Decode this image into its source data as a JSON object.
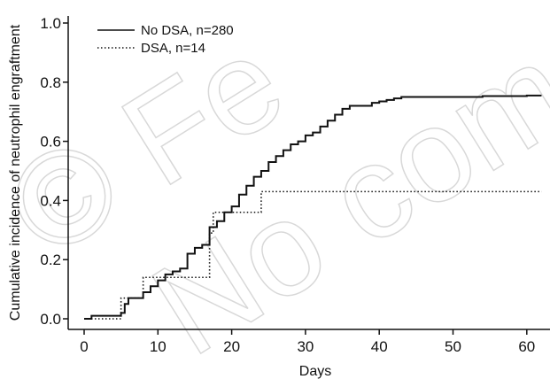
{
  "chart_data": {
    "type": "line",
    "step": true,
    "xlabel": "Days",
    "ylabel": "Cumulative incidence of neutrophil engraftment",
    "xlim": [
      0,
      62
    ],
    "ylim": [
      0,
      1.0
    ],
    "xticks": [
      "0",
      "10",
      "20",
      "30",
      "40",
      "50",
      "60"
    ],
    "yticks": [
      "0.0",
      "0.2",
      "0.4",
      "0.6",
      "0.8",
      "1.0"
    ],
    "legend_position": "top-left",
    "grid": false,
    "series": [
      {
        "name": "No DSA, n=280",
        "style": "solid",
        "points": [
          [
            0,
            0.0
          ],
          [
            1,
            0.01
          ],
          [
            5,
            0.02
          ],
          [
            5.5,
            0.05
          ],
          [
            6,
            0.07
          ],
          [
            7,
            0.07
          ],
          [
            8,
            0.09
          ],
          [
            9,
            0.11
          ],
          [
            10,
            0.13
          ],
          [
            11,
            0.15
          ],
          [
            12,
            0.16
          ],
          [
            13,
            0.17
          ],
          [
            14,
            0.22
          ],
          [
            15,
            0.24
          ],
          [
            16,
            0.25
          ],
          [
            17,
            0.31
          ],
          [
            18,
            0.33
          ],
          [
            19,
            0.36
          ],
          [
            20,
            0.38
          ],
          [
            21,
            0.42
          ],
          [
            22,
            0.45
          ],
          [
            23,
            0.48
          ],
          [
            24,
            0.5
          ],
          [
            25,
            0.53
          ],
          [
            26,
            0.55
          ],
          [
            27,
            0.57
          ],
          [
            28,
            0.59
          ],
          [
            29,
            0.6
          ],
          [
            30,
            0.62
          ],
          [
            31,
            0.63
          ],
          [
            32,
            0.65
          ],
          [
            33,
            0.67
          ],
          [
            34,
            0.69
          ],
          [
            35,
            0.71
          ],
          [
            36,
            0.72
          ],
          [
            38,
            0.72
          ],
          [
            39,
            0.73
          ],
          [
            40,
            0.735
          ],
          [
            41,
            0.74
          ],
          [
            42,
            0.745
          ],
          [
            43,
            0.75
          ],
          [
            50,
            0.75
          ],
          [
            54,
            0.753
          ],
          [
            60,
            0.755
          ],
          [
            62,
            0.755
          ]
        ]
      },
      {
        "name": "DSA, n=14",
        "style": "dotted",
        "points": [
          [
            0,
            0.0
          ],
          [
            5,
            0.07
          ],
          [
            8,
            0.14
          ],
          [
            17,
            0.29
          ],
          [
            17.5,
            0.36
          ],
          [
            24,
            0.43
          ],
          [
            62,
            0.43
          ]
        ]
      }
    ]
  },
  "watermark": {
    "lines": [
      "© Fe",
      "No com"
    ]
  }
}
